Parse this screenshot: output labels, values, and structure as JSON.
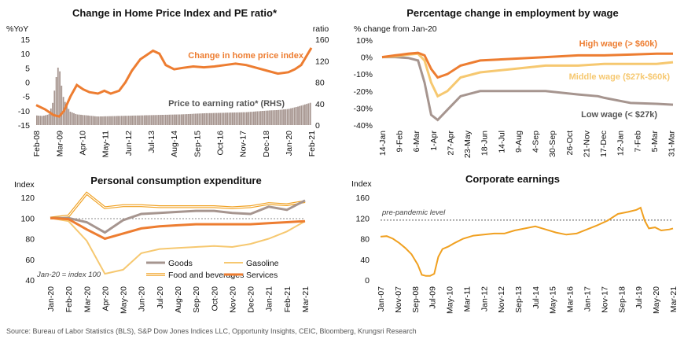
{
  "source": "Source: Bureau of Labor Statistics (BLS), S&P Dow Jones Indices LLC, Opportunity Insights, CEIC, Bloomberg, Krungsri Research",
  "colors": {
    "orange": "#ED7D31",
    "gold": "#F0A020",
    "gray": "#A6958F",
    "lightgold": "#F6C870",
    "dark": "#444444"
  },
  "chart_data": [
    {
      "type": "line",
      "title": "Change in Home Price Index and PE ratio*",
      "ylabel": "%YoY",
      "y2label": "ratio",
      "ylim": [
        -15,
        15
      ],
      "yticks": [
        -15,
        -10,
        -5,
        0,
        5,
        10,
        15
      ],
      "y2lim": [
        0,
        160
      ],
      "y2ticks": [
        0,
        40,
        80,
        120,
        160
      ],
      "xlim": [
        2008.08,
        2021.08
      ],
      "xtick_labels": [
        "Feb-08",
        "Mar-09",
        "Apr-10",
        "May-11",
        "Jun-12",
        "Jul-13",
        "Aug-14",
        "Sep-15",
        "Oct-16",
        "Nov-17",
        "Dec-18",
        "Jan-20",
        "Feb-21"
      ],
      "xtick_pos": [
        2008.08,
        2009.17,
        2010.25,
        2011.33,
        2012.42,
        2013.5,
        2014.58,
        2015.67,
        2016.75,
        2017.83,
        2018.92,
        2020.0,
        2021.08
      ],
      "annotations": [
        "Change in home price index",
        "Price to earning ratio* (RHS)"
      ],
      "series": [
        {
          "name": "Change in home price index",
          "axis": "left",
          "x": [
            2008.08,
            2008.5,
            2008.9,
            2009.17,
            2009.4,
            2009.7,
            2010.0,
            2010.3,
            2010.6,
            2011.0,
            2011.3,
            2011.6,
            2012.0,
            2012.3,
            2012.6,
            2013.0,
            2013.3,
            2013.6,
            2013.9,
            2014.2,
            2014.6,
            2015.0,
            2015.5,
            2016.0,
            2016.5,
            2017.0,
            2017.5,
            2018.0,
            2018.5,
            2019.0,
            2019.5,
            2020.0,
            2020.3,
            2020.6,
            2021.08
          ],
          "y": [
            -8,
            -9.5,
            -11.5,
            -12,
            -10,
            -5,
            -1,
            -2.5,
            -3.5,
            -4,
            -3,
            -4,
            -3,
            0,
            4,
            8,
            9.5,
            11,
            10,
            6,
            4.5,
            5,
            5.5,
            5.2,
            5.5,
            6,
            6.5,
            6,
            5,
            4,
            3,
            3.5,
            4.5,
            6,
            12
          ]
        },
        {
          "name": "Price to earning ratio* (RHS)",
          "axis": "right",
          "kind": "bar",
          "x": [
            2008.08,
            2008.4,
            2008.7,
            2008.9,
            2009.0,
            2009.1,
            2009.17,
            2009.25,
            2009.35,
            2009.5,
            2009.7,
            2010.0,
            2011.0,
            2012.0,
            2013.0,
            2014.0,
            2015.0,
            2016.0,
            2017.0,
            2018.0,
            2019.0,
            2019.5,
            2020.0,
            2020.5,
            2021.08
          ],
          "y": [
            18,
            17,
            20,
            45,
            80,
            105,
            112,
            85,
            55,
            38,
            25,
            20,
            16,
            17,
            18,
            19,
            20,
            22,
            23,
            24,
            27,
            28,
            30,
            35,
            42
          ]
        }
      ]
    },
    {
      "type": "line",
      "title": "Percentage change in employment by wage",
      "ylabel": "% change from Jan-20",
      "ylim": [
        -40,
        10
      ],
      "yticks": [
        -40,
        -30,
        -20,
        -10,
        0,
        10
      ],
      "ytick_labels": [
        "-40%",
        "-30%",
        "-20%",
        "-10%",
        "0%",
        "10%"
      ],
      "xlim": [
        0,
        445
      ],
      "xtick_labels": [
        "14-Jan",
        "9-Feb",
        "6-Mar",
        "1-Apr",
        "27-Apr",
        "23-May",
        "18-Jun",
        "14-Jul",
        "9-Aug",
        "4-Sep",
        "30-Sep",
        "26-Oct",
        "21-Nov",
        "17-Dec",
        "12-Jan",
        "7-Feb",
        "5-Mar",
        "31-Mar"
      ],
      "xtick_pos": [
        0,
        26,
        52,
        78,
        104,
        130,
        156,
        182,
        208,
        234,
        260,
        286,
        312,
        338,
        364,
        390,
        416,
        442
      ],
      "series": [
        {
          "name": "High wage (> $60k)",
          "color": "orange",
          "x": [
            0,
            20,
            40,
            55,
            65,
            75,
            85,
            100,
            120,
            150,
            200,
            250,
            300,
            340,
            380,
            420,
            445
          ],
          "y": [
            0,
            1,
            2,
            2.5,
            1,
            -7,
            -12,
            -10,
            -5,
            -2,
            -1,
            0,
            1,
            1,
            1.5,
            2,
            2
          ]
        },
        {
          "name": "Middle wage ($27k-$60k)",
          "color": "lightgold",
          "x": [
            0,
            20,
            40,
            55,
            65,
            75,
            85,
            100,
            120,
            150,
            200,
            250,
            300,
            340,
            380,
            420,
            445
          ],
          "y": [
            0,
            0.5,
            1.5,
            2,
            -2,
            -15,
            -23,
            -20,
            -12,
            -9,
            -7,
            -5,
            -5,
            -4,
            -4,
            -4,
            -3
          ]
        },
        {
          "name": "Low wage (< $27k)",
          "color": "gray",
          "x": [
            0,
            20,
            40,
            55,
            65,
            75,
            85,
            100,
            120,
            150,
            200,
            250,
            300,
            330,
            340,
            380,
            420,
            445
          ],
          "y": [
            0,
            0,
            -0.5,
            -2,
            -15,
            -34,
            -37,
            -31,
            -23,
            -20,
            -20,
            -20,
            -22,
            -23,
            -24,
            -27,
            -27.5,
            -28
          ]
        }
      ]
    },
    {
      "type": "line",
      "title": "Personal consumption expenditure",
      "ylabel": "Index",
      "ylim": [
        40,
        120
      ],
      "yticks": [
        40,
        60,
        80,
        100,
        120
      ],
      "xlim": [
        0,
        14
      ],
      "xtick_labels": [
        "Jan-20",
        "Feb-20",
        "Mar-20",
        "Apr-20",
        "May-20",
        "Jun-20",
        "Jul-20",
        "Aug-20",
        "Sep-20",
        "Oct-20",
        "Nov-20",
        "Dec-20",
        "Jan-21",
        "Feb-21",
        "Mar-21"
      ],
      "annotations": [
        "Jan-20 = index 100"
      ],
      "series": [
        {
          "name": "Goods",
          "color": "gray",
          "y": [
            100,
            100,
            96,
            86,
            98,
            104,
            105,
            106,
            107,
            107,
            105,
            104,
            111,
            108,
            117
          ]
        },
        {
          "name": "Gasoline",
          "color": "lightgold",
          "y": [
            100,
            97,
            78,
            46,
            50,
            66,
            70,
            71,
            72,
            73,
            72,
            75,
            80,
            87,
            97
          ]
        },
        {
          "name": "Food and beverages",
          "color": "lightgold",
          "style": "double",
          "y": [
            100,
            102,
            124,
            110,
            112,
            112,
            111,
            111,
            111,
            111,
            110,
            111,
            114,
            113,
            116
          ]
        },
        {
          "name": "Services",
          "color": "orange",
          "y": [
            100,
            99,
            89,
            80,
            85,
            90,
            92,
            93,
            94,
            94,
            94,
            94,
            95,
            96,
            97
          ]
        }
      ]
    },
    {
      "type": "line",
      "title": "Corporate earnings",
      "ylabel": "Index",
      "ylim": [
        0,
        160
      ],
      "yticks": [
        0,
        40,
        80,
        120,
        160
      ],
      "xlim": [
        2007.0,
        2021.17
      ],
      "xtick_labels": [
        "Jan-07",
        "Nov-07",
        "Sep-08",
        "Jul-09",
        "May-10",
        "Mar-11",
        "Jan-12",
        "Nov-12",
        "Sep-13",
        "Jul-14",
        "May-15",
        "Mar-16",
        "Jan-17",
        "Nov-17",
        "Sep-18",
        "Jul-19",
        "May-20",
        "Mar-21"
      ],
      "xtick_pos": [
        2007.0,
        2007.83,
        2008.67,
        2009.5,
        2010.33,
        2011.17,
        2012.0,
        2012.83,
        2013.67,
        2014.5,
        2015.33,
        2016.17,
        2017.0,
        2017.83,
        2018.67,
        2019.5,
        2020.33,
        2021.17
      ],
      "annotations": [
        "pre-pandemic level"
      ],
      "reference_line": 116,
      "series": [
        {
          "name": "Corporate earnings",
          "color": "gold",
          "x": [
            2007.0,
            2007.3,
            2007.6,
            2007.9,
            2008.2,
            2008.5,
            2008.8,
            2009.0,
            2009.2,
            2009.4,
            2009.6,
            2009.8,
            2010.0,
            2010.3,
            2010.6,
            2011.0,
            2011.5,
            2012.0,
            2012.5,
            2013.0,
            2013.5,
            2014.0,
            2014.5,
            2015.0,
            2015.5,
            2016.0,
            2016.5,
            2017.0,
            2017.5,
            2018.0,
            2018.5,
            2019.0,
            2019.4,
            2019.6,
            2019.8,
            2020.0,
            2020.3,
            2020.6,
            2021.0,
            2021.17
          ],
          "y": [
            84,
            85,
            80,
            72,
            62,
            50,
            30,
            10,
            8,
            8,
            12,
            45,
            60,
            65,
            72,
            80,
            86,
            88,
            90,
            90,
            96,
            100,
            104,
            98,
            92,
            88,
            90,
            98,
            106,
            115,
            128,
            132,
            136,
            140,
            115,
            100,
            102,
            96,
            98,
            100
          ]
        }
      ]
    }
  ]
}
